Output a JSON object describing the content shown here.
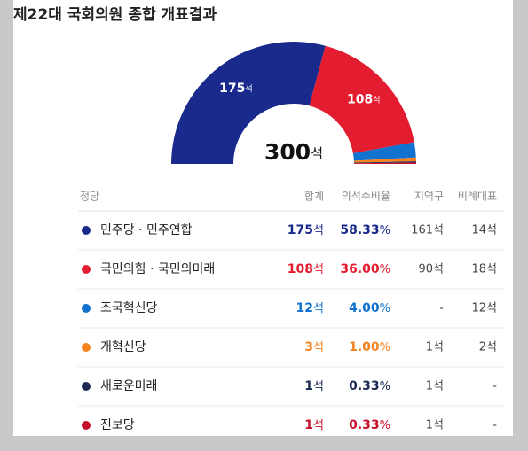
{
  "chart_data": {
    "type": "pie",
    "title": "제22대 국회의원 종합 개표결과",
    "categories": [
      "민주당 · 민주연합",
      "국민의힘 · 국민의미래",
      "조국혁신당",
      "개혁신당",
      "새로운미래",
      "진보당"
    ],
    "values": [
      175,
      108,
      12,
      3,
      1,
      1
    ],
    "value_labels": [
      "175석",
      "108석",
      null,
      null,
      null,
      null
    ],
    "colors": [
      "#1a2a8c",
      "#e31d2f",
      "#1172d0",
      "#f5821f",
      "#1c2a52",
      "#c8102e"
    ],
    "total_label": "300석"
  },
  "table": {
    "headers": [
      "정당",
      "합계",
      "의석수비율",
      "지역구",
      "비례대표"
    ],
    "rows": [
      [
        "민주당 · 민주연합",
        "175석",
        "58.33%",
        "161석",
        "14석"
      ],
      [
        "국민의힘 · 국민의미래",
        "108석",
        "36.00%",
        "90석",
        "18석"
      ],
      [
        "조국혁신당",
        "12석",
        "4.00%",
        "-",
        "12석"
      ],
      [
        "개혁신당",
        "3석",
        "1.00%",
        "1석",
        "2석"
      ],
      [
        "새로운미래",
        "1석",
        "0.33%",
        "1석",
        "-"
      ],
      [
        "진보당",
        "1석",
        "0.33%",
        "1석",
        "-"
      ]
    ]
  }
}
